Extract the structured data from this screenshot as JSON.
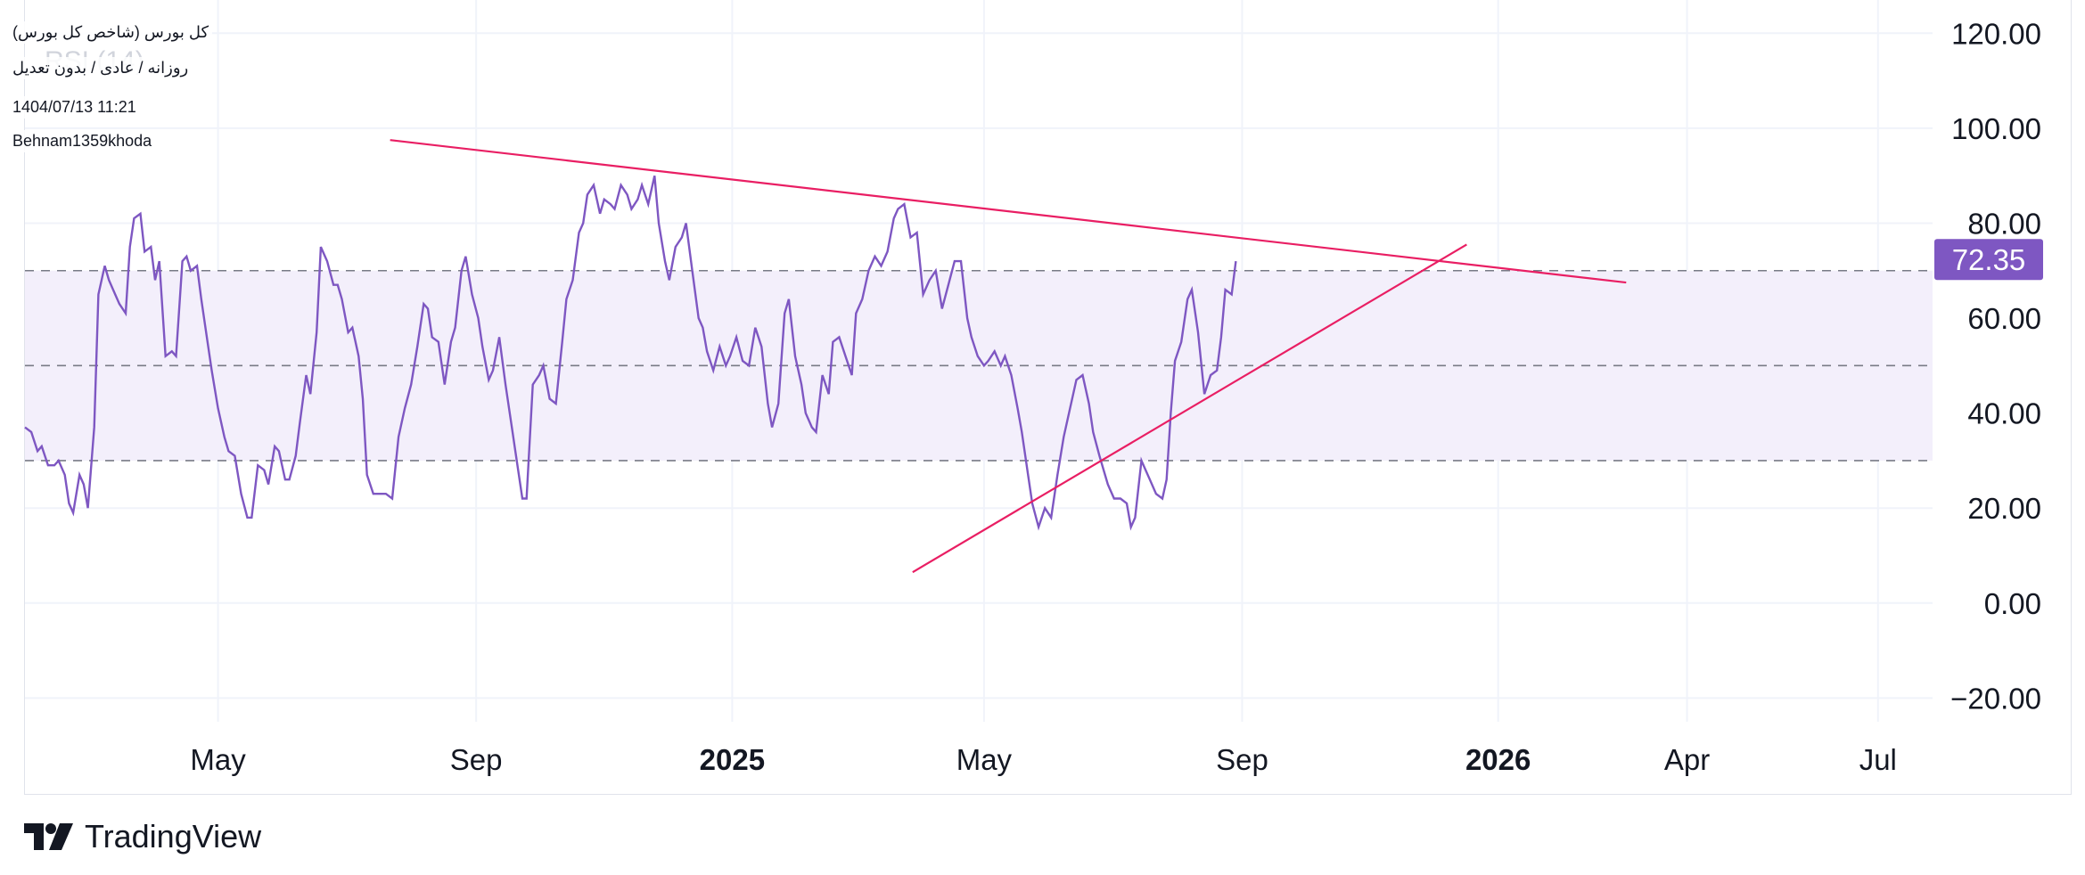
{
  "header": {
    "title": "کل بورس (شاخص کل بورس)",
    "interval": "روزانه / عادی / بدون تعدیل",
    "datetime": "1404/07/13 11:21",
    "author": "Behnam1359khoda",
    "indicator_watermark": "RSI (14)"
  },
  "footer": {
    "brand": "TradingView"
  },
  "colors": {
    "rsi_line": "#7e57c2",
    "band_fill": "#f3effb",
    "trendline": "#e91e63",
    "badge": "#7e57c2",
    "grid": "#f0f3fa"
  },
  "chart_data": {
    "type": "line",
    "indicator": "RSI (14)",
    "ylim": [
      -25,
      127
    ],
    "y_ticks": [
      "120.00",
      "100.00",
      "80.00",
      "60.00",
      "40.00",
      "20.00",
      "0.00",
      "−20.00"
    ],
    "y_tick_values": [
      120,
      100,
      80,
      60,
      40,
      20,
      0,
      -20
    ],
    "x_ticks": [
      {
        "label": "May",
        "date": "2024-05-01",
        "major": false
      },
      {
        "label": "Sep",
        "date": "2024-09-01",
        "major": false
      },
      {
        "label": "2025",
        "date": "2025-01-01",
        "major": true
      },
      {
        "label": "May",
        "date": "2025-05-01",
        "major": false
      },
      {
        "label": "Sep",
        "date": "2025-09-01",
        "major": false
      },
      {
        "label": "2026",
        "date": "2026-01-01",
        "major": true
      },
      {
        "label": "Apr",
        "date": "2026-04-01",
        "major": false
      },
      {
        "label": "Jul",
        "date": "2026-07-01",
        "major": false
      }
    ],
    "xlim": [
      "2024-01-30",
      "2026-07-27"
    ],
    "bands": {
      "upper": 70,
      "middle": 50,
      "lower": 30
    },
    "last_value": "72.35",
    "series": [
      {
        "points": [
          [
            "2024-01-30",
            37
          ],
          [
            "2024-02-02",
            36
          ],
          [
            "2024-02-05",
            32
          ],
          [
            "2024-02-07",
            33
          ],
          [
            "2024-02-10",
            29
          ],
          [
            "2024-02-13",
            29
          ],
          [
            "2024-02-15",
            30
          ],
          [
            "2024-02-18",
            27
          ],
          [
            "2024-02-20",
            21
          ],
          [
            "2024-02-22",
            19
          ],
          [
            "2024-02-25",
            27
          ],
          [
            "2024-02-27",
            25
          ],
          [
            "2024-02-29",
            20
          ],
          [
            "2024-03-03",
            37
          ],
          [
            "2024-03-05",
            65
          ],
          [
            "2024-03-08",
            71
          ],
          [
            "2024-03-10",
            68
          ],
          [
            "2024-03-13",
            65
          ],
          [
            "2024-03-15",
            63
          ],
          [
            "2024-03-18",
            61
          ],
          [
            "2024-03-20",
            75
          ],
          [
            "2024-03-22",
            81
          ],
          [
            "2024-03-25",
            82
          ],
          [
            "2024-03-27",
            74
          ],
          [
            "2024-03-30",
            75
          ],
          [
            "2024-04-01",
            68
          ],
          [
            "2024-04-03",
            72
          ],
          [
            "2024-04-06",
            52
          ],
          [
            "2024-04-09",
            53
          ],
          [
            "2024-04-11",
            52
          ],
          [
            "2024-04-14",
            72
          ],
          [
            "2024-04-16",
            73
          ],
          [
            "2024-04-18",
            70
          ],
          [
            "2024-04-21",
            71
          ],
          [
            "2024-04-23",
            64
          ],
          [
            "2024-04-26",
            55
          ],
          [
            "2024-04-28",
            49
          ],
          [
            "2024-05-01",
            41
          ],
          [
            "2024-05-04",
            35
          ],
          [
            "2024-05-06",
            32
          ],
          [
            "2024-05-09",
            31
          ],
          [
            "2024-05-12",
            23
          ],
          [
            "2024-05-15",
            18
          ],
          [
            "2024-05-17",
            18
          ],
          [
            "2024-05-20",
            29
          ],
          [
            "2024-05-23",
            28
          ],
          [
            "2024-05-25",
            25
          ],
          [
            "2024-05-28",
            33
          ],
          [
            "2024-05-30",
            32
          ],
          [
            "2024-06-02",
            26
          ],
          [
            "2024-06-04",
            26
          ],
          [
            "2024-06-07",
            31
          ],
          [
            "2024-06-09",
            38
          ],
          [
            "2024-06-12",
            48
          ],
          [
            "2024-06-14",
            44
          ],
          [
            "2024-06-17",
            57
          ],
          [
            "2024-06-19",
            75
          ],
          [
            "2024-06-22",
            72
          ],
          [
            "2024-06-25",
            67
          ],
          [
            "2024-06-27",
            67
          ],
          [
            "2024-06-29",
            64
          ],
          [
            "2024-07-02",
            57
          ],
          [
            "2024-07-04",
            58
          ],
          [
            "2024-07-07",
            52
          ],
          [
            "2024-07-09",
            43
          ],
          [
            "2024-07-11",
            27
          ],
          [
            "2024-07-14",
            23
          ],
          [
            "2024-07-17",
            23
          ],
          [
            "2024-07-20",
            23
          ],
          [
            "2024-07-23",
            22
          ],
          [
            "2024-07-26",
            35
          ],
          [
            "2024-07-29",
            41
          ],
          [
            "2024-08-01",
            46
          ],
          [
            "2024-08-04",
            54
          ],
          [
            "2024-08-07",
            63
          ],
          [
            "2024-08-09",
            62
          ],
          [
            "2024-08-11",
            56
          ],
          [
            "2024-08-14",
            55
          ],
          [
            "2024-08-17",
            46
          ],
          [
            "2024-08-20",
            55
          ],
          [
            "2024-08-22",
            58
          ],
          [
            "2024-08-25",
            70
          ],
          [
            "2024-08-27",
            73
          ],
          [
            "2024-08-30",
            65
          ],
          [
            "2024-09-02",
            60
          ],
          [
            "2024-09-04",
            54
          ],
          [
            "2024-09-07",
            47
          ],
          [
            "2024-09-09",
            49
          ],
          [
            "2024-09-12",
            56
          ],
          [
            "2024-09-15",
            46
          ],
          [
            "2024-09-18",
            37
          ],
          [
            "2024-09-20",
            31
          ],
          [
            "2024-09-23",
            22
          ],
          [
            "2024-09-25",
            22
          ],
          [
            "2024-09-28",
            46
          ],
          [
            "2024-10-01",
            48
          ],
          [
            "2024-10-03",
            50
          ],
          [
            "2024-10-06",
            43
          ],
          [
            "2024-10-09",
            42
          ],
          [
            "2024-10-12",
            55
          ],
          [
            "2024-10-14",
            64
          ],
          [
            "2024-10-17",
            68
          ],
          [
            "2024-10-20",
            78
          ],
          [
            "2024-10-22",
            80
          ],
          [
            "2024-10-24",
            86
          ],
          [
            "2024-10-27",
            88
          ],
          [
            "2024-10-30",
            82
          ],
          [
            "2024-11-01",
            85
          ],
          [
            "2024-11-04",
            84
          ],
          [
            "2024-11-06",
            83
          ],
          [
            "2024-11-09",
            88
          ],
          [
            "2024-11-12",
            86
          ],
          [
            "2024-11-14",
            83
          ],
          [
            "2024-11-17",
            85
          ],
          [
            "2024-11-19",
            88
          ],
          [
            "2024-11-22",
            84
          ],
          [
            "2024-11-25",
            90
          ],
          [
            "2024-11-27",
            80
          ],
          [
            "2024-11-30",
            72
          ],
          [
            "2024-12-02",
            68
          ],
          [
            "2024-12-05",
            75
          ],
          [
            "2024-12-08",
            77
          ],
          [
            "2024-12-10",
            80
          ],
          [
            "2024-12-13",
            70
          ],
          [
            "2024-12-16",
            60
          ],
          [
            "2024-12-18",
            58
          ],
          [
            "2024-12-20",
            53
          ],
          [
            "2024-12-23",
            49
          ],
          [
            "2024-12-26",
            54
          ],
          [
            "2024-12-29",
            50
          ],
          [
            "2024-12-31",
            52
          ],
          [
            "2025-01-03",
            56
          ],
          [
            "2025-01-06",
            51
          ],
          [
            "2025-01-09",
            50
          ],
          [
            "2025-01-12",
            58
          ],
          [
            "2025-01-15",
            54
          ],
          [
            "2025-01-18",
            42
          ],
          [
            "2025-01-20",
            37
          ],
          [
            "2025-01-23",
            42
          ],
          [
            "2025-01-26",
            61
          ],
          [
            "2025-01-28",
            64
          ],
          [
            "2025-01-31",
            52
          ],
          [
            "2025-02-03",
            46
          ],
          [
            "2025-02-05",
            40
          ],
          [
            "2025-02-08",
            37
          ],
          [
            "2025-02-10",
            36
          ],
          [
            "2025-02-13",
            48
          ],
          [
            "2025-02-16",
            44
          ],
          [
            "2025-02-18",
            55
          ],
          [
            "2025-02-21",
            56
          ],
          [
            "2025-02-24",
            52
          ],
          [
            "2025-02-27",
            48
          ],
          [
            "2025-03-01",
            61
          ],
          [
            "2025-03-04",
            64
          ],
          [
            "2025-03-07",
            70
          ],
          [
            "2025-03-10",
            73
          ],
          [
            "2025-03-13",
            71
          ],
          [
            "2025-03-16",
            74
          ],
          [
            "2025-03-19",
            81
          ],
          [
            "2025-03-21",
            83
          ],
          [
            "2025-03-24",
            84
          ],
          [
            "2025-03-27",
            77
          ],
          [
            "2025-03-30",
            78
          ],
          [
            "2025-04-02",
            65
          ],
          [
            "2025-04-05",
            68
          ],
          [
            "2025-04-08",
            70
          ],
          [
            "2025-04-11",
            62
          ],
          [
            "2025-04-14",
            67
          ],
          [
            "2025-04-17",
            72
          ],
          [
            "2025-04-20",
            72
          ],
          [
            "2025-04-23",
            60
          ],
          [
            "2025-04-25",
            56
          ],
          [
            "2025-04-28",
            52
          ],
          [
            "2025-05-01",
            50
          ],
          [
            "2025-05-03",
            51
          ],
          [
            "2025-05-06",
            53
          ],
          [
            "2025-05-09",
            50
          ],
          [
            "2025-05-11",
            52
          ],
          [
            "2025-05-14",
            48
          ],
          [
            "2025-05-17",
            41
          ],
          [
            "2025-05-19",
            36
          ],
          [
            "2025-05-22",
            27
          ],
          [
            "2025-05-24",
            21
          ],
          [
            "2025-05-27",
            16
          ],
          [
            "2025-05-30",
            20
          ],
          [
            "2025-06-02",
            18
          ],
          [
            "2025-06-05",
            27
          ],
          [
            "2025-06-08",
            35
          ],
          [
            "2025-06-11",
            41
          ],
          [
            "2025-06-14",
            47
          ],
          [
            "2025-06-17",
            48
          ],
          [
            "2025-06-20",
            42
          ],
          [
            "2025-06-22",
            36
          ],
          [
            "2025-06-25",
            31
          ],
          [
            "2025-06-27",
            28
          ],
          [
            "2025-06-29",
            25
          ],
          [
            "2025-07-02",
            22
          ],
          [
            "2025-07-05",
            22
          ],
          [
            "2025-07-08",
            21
          ],
          [
            "2025-07-10",
            16
          ],
          [
            "2025-07-12",
            18
          ],
          [
            "2025-07-15",
            30
          ],
          [
            "2025-07-17",
            28
          ],
          [
            "2025-07-19",
            26
          ],
          [
            "2025-07-22",
            23
          ],
          [
            "2025-07-25",
            22
          ],
          [
            "2025-07-27",
            26
          ],
          [
            "2025-07-29",
            40
          ],
          [
            "2025-07-31",
            51
          ],
          [
            "2025-08-03",
            55
          ],
          [
            "2025-08-06",
            64
          ],
          [
            "2025-08-08",
            66
          ],
          [
            "2025-08-11",
            57
          ],
          [
            "2025-08-14",
            44
          ],
          [
            "2025-08-17",
            48
          ],
          [
            "2025-08-20",
            49
          ],
          [
            "2025-08-22",
            56
          ],
          [
            "2025-08-24",
            66
          ],
          [
            "2025-08-27",
            65
          ],
          [
            "2025-08-29",
            72
          ]
        ]
      }
    ],
    "trendlines": [
      {
        "from": [
          "2024-07-22",
          97.5
        ],
        "to": [
          "2026-03-03",
          67.5
        ]
      },
      {
        "from": [
          "2025-03-28",
          6.5
        ],
        "to": [
          "2025-12-17",
          75.5
        ]
      }
    ]
  }
}
